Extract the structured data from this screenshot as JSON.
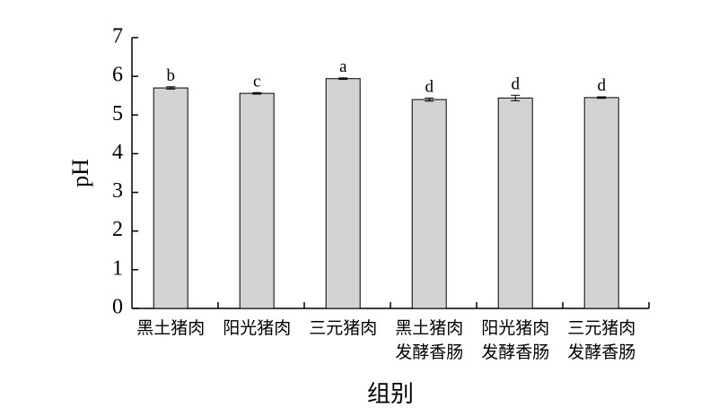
{
  "chart_data": {
    "type": "bar",
    "x_label": "组别",
    "y_label": "pH",
    "categories": [
      [
        "黑土猪肉"
      ],
      [
        "阳光猪肉"
      ],
      [
        "三元猪肉"
      ],
      [
        "黑土猪肉",
        "发酵香肠"
      ],
      [
        "阳光猪肉",
        "发酵香肠"
      ],
      [
        "三元猪肉",
        "发酵香肠"
      ]
    ],
    "values": [
      5.7,
      5.56,
      5.94,
      5.4,
      5.44,
      5.45
    ],
    "errors": [
      0.03,
      0.02,
      0.02,
      0.04,
      0.07,
      0.02
    ],
    "significance_labels": [
      "b",
      "c",
      "a",
      "d",
      "d",
      "d"
    ],
    "color": "#d3d3d3",
    "ylim": [
      0,
      7
    ],
    "yticks": [
      0,
      1,
      2,
      3,
      4,
      5,
      6,
      7
    ]
  }
}
